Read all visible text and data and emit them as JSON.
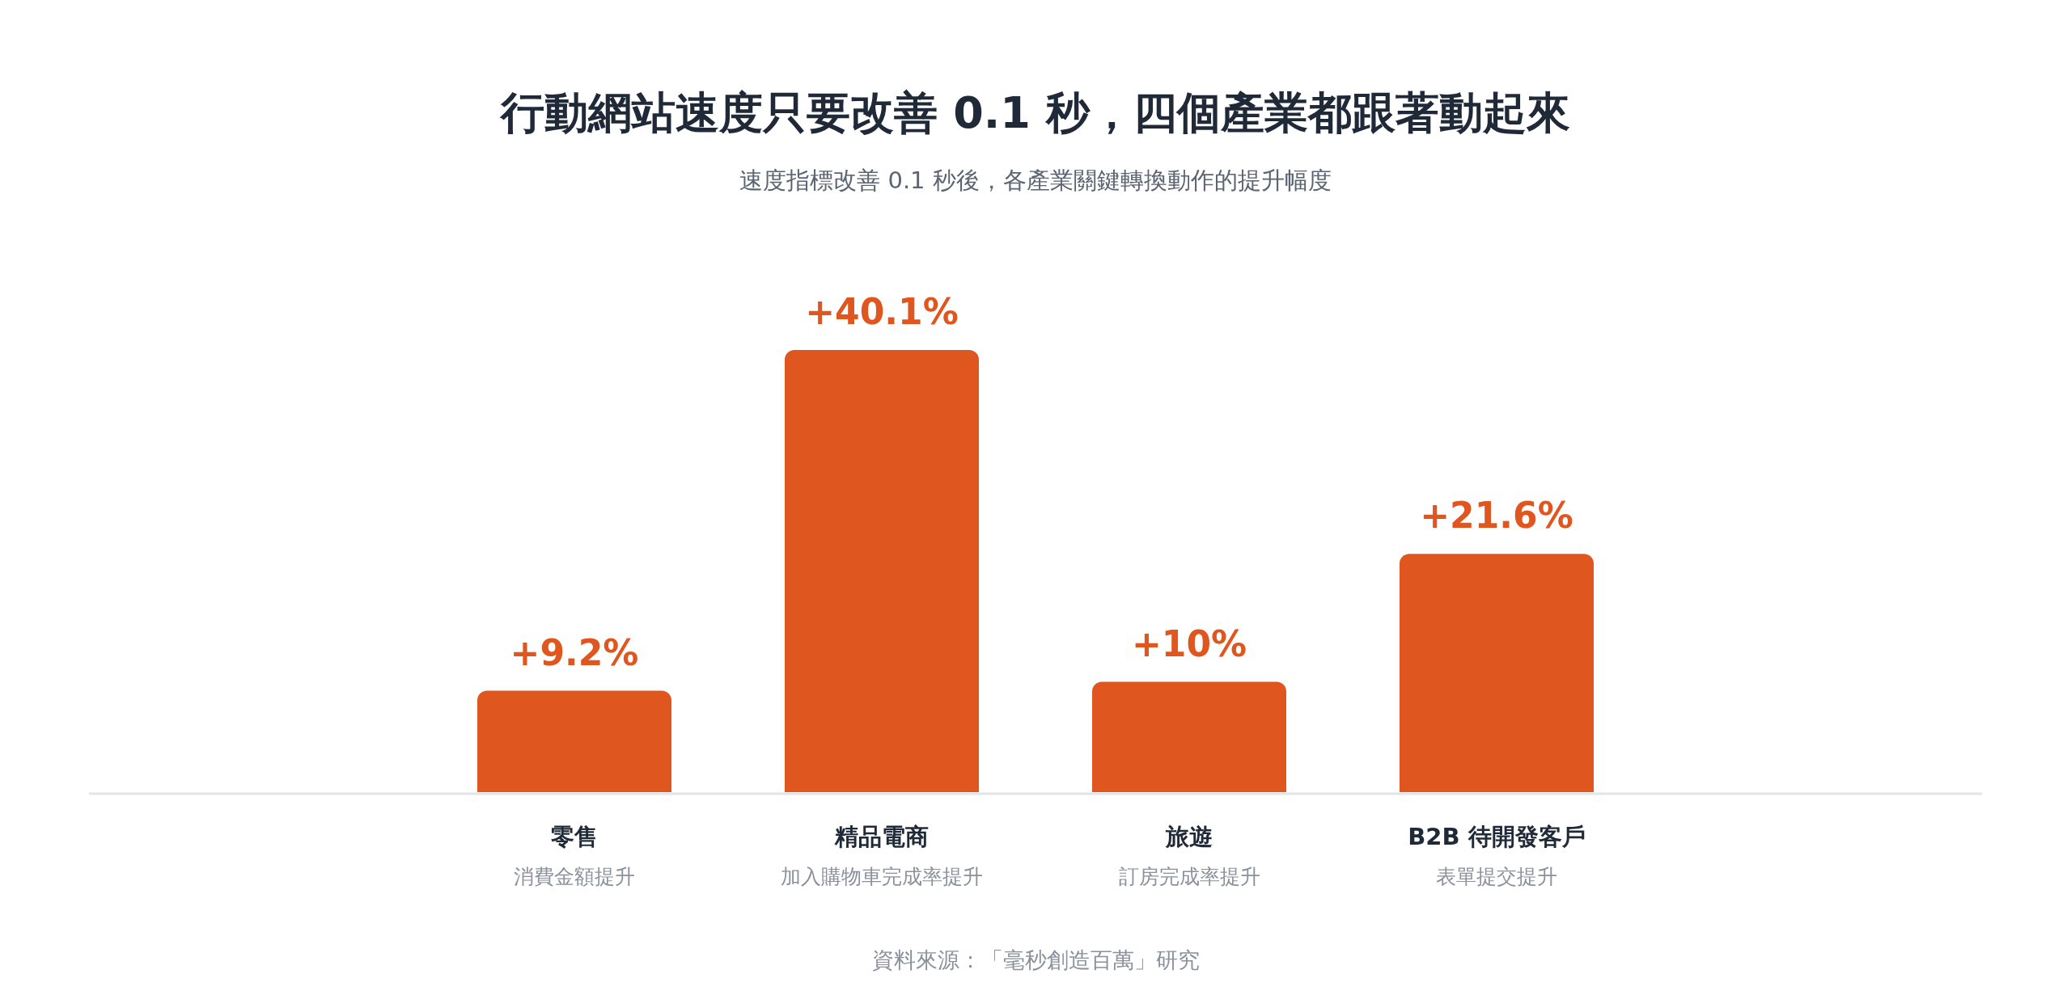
{
  "chart_data": {
    "type": "bar",
    "title": "行動網站速度只要改善 0.1 秒，四個產業都跟著動起來",
    "subtitle": "速度指標改善 0.1 秒後，各產業關鍵轉換動作的提升幅度",
    "categories": [
      "零售",
      "精品電商",
      "旅遊",
      "B2B 待開發客戶"
    ],
    "values": [
      9.2,
      40.1,
      10,
      21.6
    ],
    "color": "#e0561f",
    "value_labels": [
      "+9.2%",
      "+40.1%",
      "+10%",
      "+21.6%"
    ],
    "annotations": [
      "消費金額提升",
      "加入購物車完成率提升",
      "訂房完成率提升",
      "表單提交提升",
      "資料來源：「毫秒創造百萬」研究"
    ],
    "grid": false,
    "legend": false
  }
}
